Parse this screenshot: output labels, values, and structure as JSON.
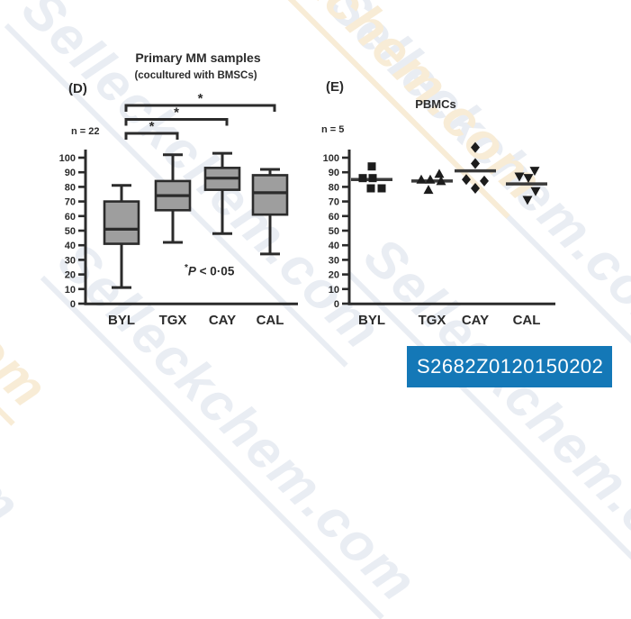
{
  "watermark": {
    "text": "Selleckchem.com"
  },
  "product_id": "S2682Z0120150202",
  "colors": {
    "accent_blue": "#1478b7",
    "box_fill": "#9e9e9e",
    "ink": "#2b2b2b",
    "marker_fill": "#1c1c1c",
    "watermark_gray": "#e9edf3",
    "watermark_orange": "#f8ecd6"
  },
  "chart_data": [
    {
      "type": "box",
      "panel_label": "(D)",
      "title": "Primary MM samples",
      "subtitle": "(cocultured with BMSCs)",
      "n_label": "n = 22",
      "categories": [
        "BYL",
        "TGX",
        "CAY",
        "CAL"
      ],
      "ylim": [
        0,
        100
      ],
      "yticks": [
        0,
        10,
        20,
        30,
        40,
        50,
        60,
        70,
        80,
        90,
        100
      ],
      "boxes": [
        {
          "category": "BYL",
          "min": 11,
          "q1": 41,
          "median": 51,
          "q3": 70,
          "max": 81
        },
        {
          "category": "TGX",
          "min": 42,
          "q1": 64,
          "median": 74,
          "q3": 84,
          "max": 102
        },
        {
          "category": "CAY",
          "min": 48,
          "q1": 78,
          "median": 86,
          "q3": 93,
          "max": 103
        },
        {
          "category": "CAL",
          "min": 34,
          "q1": 61,
          "median": 76,
          "q3": 88,
          "max": 92
        }
      ],
      "significance": [
        {
          "from": "BYL",
          "to": "TGX",
          "label": "*"
        },
        {
          "from": "BYL",
          "to": "CAY",
          "label": "*"
        },
        {
          "from": "BYL",
          "to": "CAL",
          "label": "*"
        }
      ],
      "annotation": {
        "star": "*",
        "p": "P",
        "rest": " < 0·05"
      }
    },
    {
      "type": "scatter",
      "panel_label": "(E)",
      "title": "PBMCs",
      "n_label": "n = 5",
      "categories": [
        "BYL",
        "TGX",
        "CAY",
        "CAL"
      ],
      "ylim": [
        0,
        100
      ],
      "yticks": [
        0,
        10,
        20,
        30,
        40,
        50,
        60,
        70,
        80,
        90,
        100
      ],
      "series": [
        {
          "category": "BYL",
          "marker": "square",
          "values": [
            94,
            86,
            86,
            79,
            79
          ],
          "dx": [
            0,
            -10,
            1,
            -1,
            11
          ],
          "mean": 85
        },
        {
          "category": "TGX",
          "marker": "triangle-up",
          "values": [
            89,
            85,
            85,
            84,
            78
          ],
          "dx": [
            8,
            -12,
            -2,
            10,
            -4
          ],
          "mean": 84
        },
        {
          "category": "CAY",
          "marker": "diamond",
          "values": [
            107,
            96,
            85,
            84,
            79
          ],
          "dx": [
            0,
            0,
            -10,
            10,
            0
          ],
          "mean": 91
        },
        {
          "category": "CAL",
          "marker": "triangle-down",
          "values": [
            91,
            87,
            86,
            77,
            71
          ],
          "dx": [
            9,
            -8,
            2,
            10,
            1
          ],
          "mean": 82
        }
      ]
    }
  ]
}
